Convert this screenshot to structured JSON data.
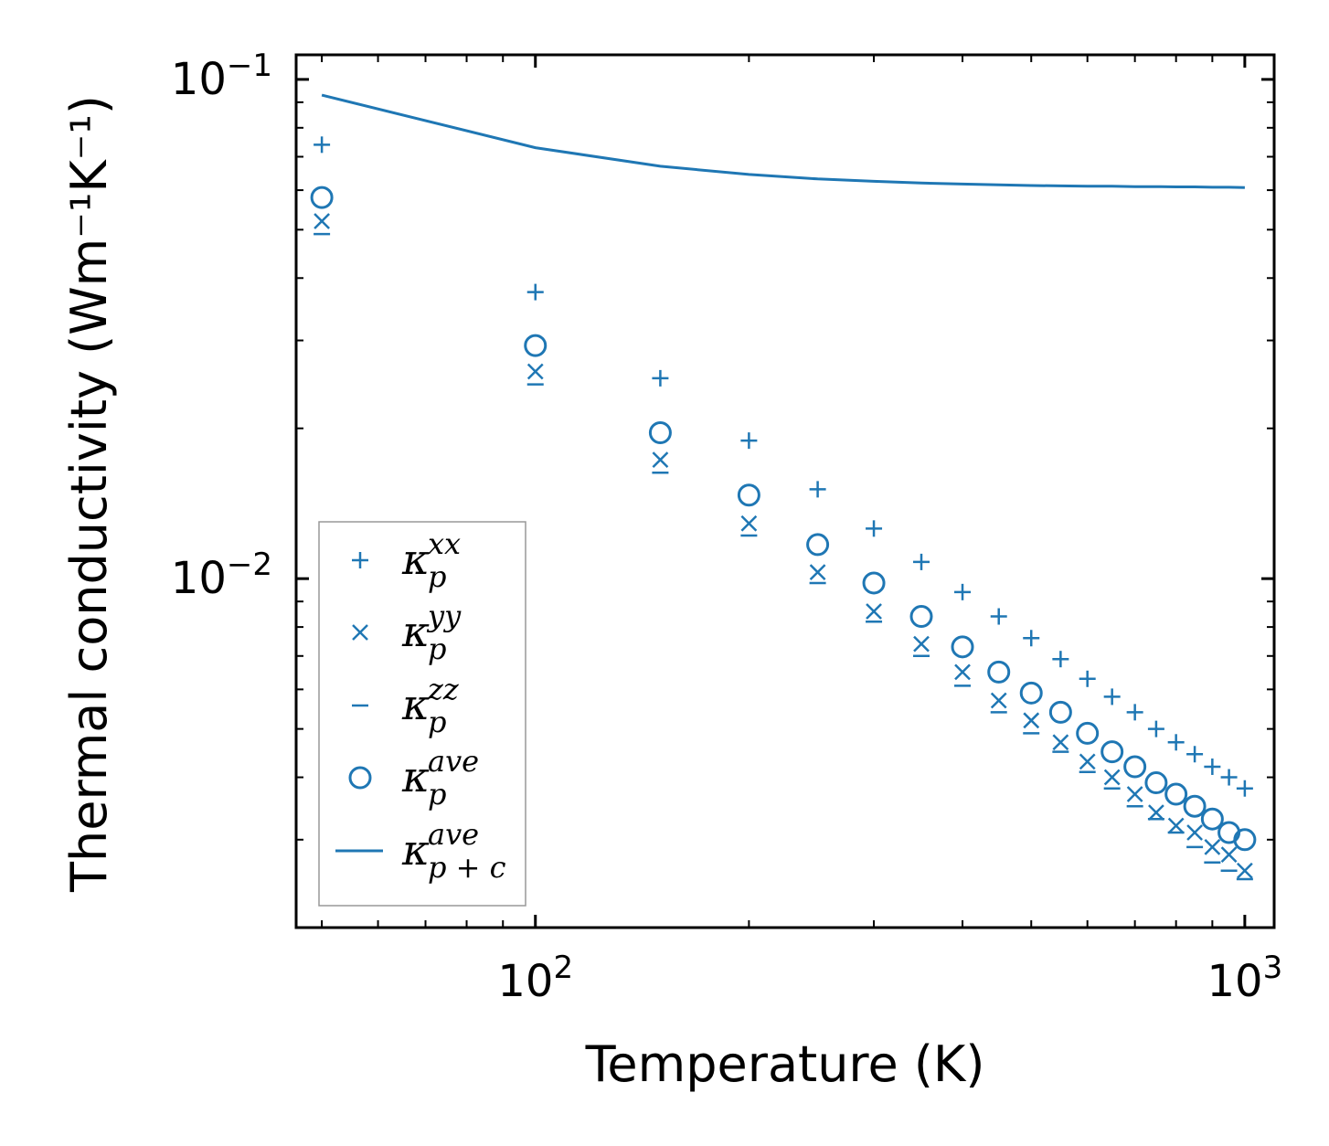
{
  "chart_data": {
    "type": "scatter",
    "xscale": "log",
    "yscale": "log",
    "xlabel": "Temperature (K)",
    "ylabel": "Thermal conductivity (Wm⁻¹K⁻¹)",
    "xlim": [
      46,
      1100
    ],
    "ylim": [
      0.002,
      0.112
    ],
    "xticks": [
      {
        "value": 100,
        "base": "10",
        "exp": "2"
      },
      {
        "value": 1000,
        "base": "10",
        "exp": "3"
      }
    ],
    "yticks": [
      {
        "value": 0.01,
        "base": "10",
        "exp": "−2"
      },
      {
        "value": 0.1,
        "base": "10",
        "exp": "−1"
      }
    ],
    "color": "#1f77b4",
    "x": [
      50,
      100,
      150,
      200,
      250,
      300,
      350,
      400,
      450,
      500,
      550,
      600,
      650,
      700,
      750,
      800,
      850,
      900,
      950,
      1000
    ],
    "series": [
      {
        "name": "kappa_p_xx",
        "label": "κ",
        "sub": "p",
        "sup": "xx",
        "marker": "plus",
        "values": [
          0.074,
          0.0375,
          0.0252,
          0.0189,
          0.0151,
          0.0126,
          0.0108,
          0.0094,
          0.0084,
          0.0076,
          0.0069,
          0.0063,
          0.0058,
          0.0054,
          0.005,
          0.0047,
          0.00445,
          0.0042,
          0.004,
          0.0038
        ]
      },
      {
        "name": "kappa_p_yy",
        "label": "κ",
        "sub": "p",
        "sup": "yy",
        "marker": "x",
        "values": [
          0.052,
          0.026,
          0.0173,
          0.0129,
          0.0103,
          0.0086,
          0.0074,
          0.0065,
          0.0057,
          0.0052,
          0.0047,
          0.0043,
          0.004,
          0.0037,
          0.0034,
          0.0032,
          0.0031,
          0.0029,
          0.0028,
          0.0026
        ]
      },
      {
        "name": "kappa_p_zz",
        "label": "κ",
        "sub": "p",
        "sup": "zz",
        "marker": "dash",
        "values": [
          0.049,
          0.0245,
          0.0163,
          0.0122,
          0.0098,
          0.0082,
          0.007,
          0.0061,
          0.0054,
          0.0049,
          0.0045,
          0.0041,
          0.0038,
          0.0035,
          0.0033,
          0.0031,
          0.0029,
          0.0027,
          0.0026,
          0.0025
        ]
      },
      {
        "name": "kappa_p_ave",
        "label": "κ",
        "sub": "p",
        "sup": "ave",
        "marker": "circle",
        "values": [
          0.058,
          0.0293,
          0.0196,
          0.0147,
          0.0117,
          0.0098,
          0.0084,
          0.0073,
          0.0065,
          0.0059,
          0.0054,
          0.0049,
          0.0045,
          0.0042,
          0.0039,
          0.0037,
          0.0035,
          0.0033,
          0.0031,
          0.003
        ]
      },
      {
        "name": "kappa_pc_ave",
        "label": "κ",
        "sub": "p + c",
        "sup": "ave",
        "marker": "line",
        "values": [
          0.093,
          0.073,
          0.067,
          0.0645,
          0.0632,
          0.0625,
          0.062,
          0.0617,
          0.0615,
          0.0613,
          0.0612,
          0.0611,
          0.0611,
          0.061,
          0.061,
          0.0609,
          0.0609,
          0.0608,
          0.0608,
          0.0607
        ]
      }
    ],
    "legend_position": "lower-left",
    "grid": false
  }
}
